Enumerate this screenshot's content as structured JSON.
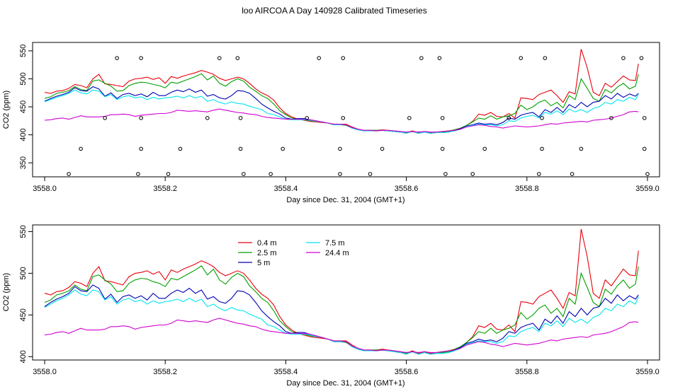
{
  "title": "loo AIRCOA A  Day 140928  Calibrated Timeseries",
  "colors": {
    "0.4 m": "#e8000b",
    "2.5 m": "#00a000",
    "5 m": "#0000b4",
    "7.5 m": "#00e5ee",
    "24.4 m": "#d000d0"
  },
  "panels": [
    {
      "xlabel": "Day since Dec. 31, 2004 (GMT+1)",
      "ylabel": "CO2 (ppm)",
      "xlim": [
        3557.98,
        3559.02
      ],
      "ylim": [
        325,
        565
      ],
      "yticks": [
        350,
        400,
        450,
        500,
        550
      ],
      "xticks": [
        3558.0,
        3558.2,
        3558.4,
        3558.6,
        3558.8,
        3559.0
      ],
      "xtick_labels": [
        "3558.0",
        "3558.2",
        "3558.4",
        "3558.6",
        "3558.8",
        "3559.0"
      ],
      "show_markers": true
    },
    {
      "xlabel": "Day since Dec. 31, 2004 (GMT+1)",
      "ylabel": "CO2 (ppm)",
      "xlim": [
        3557.98,
        3559.02
      ],
      "ylim": [
        396,
        558
      ],
      "yticks": [
        400,
        450,
        500,
        550
      ],
      "xticks": [
        3558.0,
        3558.2,
        3558.4,
        3558.6,
        3558.8,
        3559.0
      ],
      "xtick_labels": [
        "3558.0",
        "3558.2",
        "3558.4",
        "3558.6",
        "3558.8",
        "3559.0"
      ],
      "show_markers": false,
      "legend": {
        "placement": "top-left",
        "entries": [
          "0.4 m",
          "2.5 m",
          "5 m",
          "7.5 m",
          "24.4 m"
        ]
      }
    }
  ],
  "chart_data": {
    "type": "line",
    "x": [
      3558.0,
      3558.01,
      3558.02,
      3558.03,
      3558.04,
      3558.05,
      3558.06,
      3558.07,
      3558.08,
      3558.09,
      3558.1,
      3558.11,
      3558.12,
      3558.13,
      3558.14,
      3558.15,
      3558.16,
      3558.17,
      3558.18,
      3558.19,
      3558.2,
      3558.21,
      3558.22,
      3558.23,
      3558.24,
      3558.25,
      3558.26,
      3558.27,
      3558.28,
      3558.29,
      3558.3,
      3558.31,
      3558.32,
      3558.33,
      3558.34,
      3558.35,
      3558.36,
      3558.37,
      3558.38,
      3558.39,
      3558.4,
      3558.41,
      3558.42,
      3558.43,
      3558.44,
      3558.45,
      3558.46,
      3558.47,
      3558.48,
      3558.49,
      3558.5,
      3558.51,
      3558.52,
      3558.53,
      3558.54,
      3558.55,
      3558.56,
      3558.57,
      3558.58,
      3558.59,
      3558.6,
      3558.61,
      3558.62,
      3558.63,
      3558.64,
      3558.65,
      3558.66,
      3558.67,
      3558.68,
      3558.69,
      3558.7,
      3558.71,
      3558.72,
      3558.73,
      3558.74,
      3558.75,
      3558.76,
      3558.77,
      3558.78,
      3558.79,
      3558.8,
      3558.81,
      3558.82,
      3558.83,
      3558.84,
      3558.85,
      3558.86,
      3558.87,
      3558.88,
      3558.89,
      3558.9,
      3558.91,
      3558.92,
      3558.93,
      3558.94,
      3558.95,
      3558.96,
      3558.97,
      3558.98,
      3558.985
    ],
    "series": [
      {
        "name": "0.4 m",
        "values": [
          476,
          474,
          478,
          479,
          483,
          490,
          488,
          484,
          500,
          508,
          491,
          490,
          488,
          486,
          496,
          500,
          501,
          503,
          499,
          502,
          492,
          504,
          501,
          505,
          508,
          511,
          515,
          512,
          508,
          501,
          497,
          500,
          503,
          500,
          492,
          482,
          475,
          470,
          462,
          448,
          438,
          432,
          428,
          426,
          424,
          423,
          422,
          421,
          419,
          419,
          419,
          414,
          410,
          408,
          408,
          408,
          409,
          408,
          407,
          406,
          404,
          407,
          404,
          406,
          404,
          405,
          406,
          407,
          409,
          412,
          417,
          424,
          437,
          435,
          440,
          433,
          432,
          438,
          430,
          466,
          465,
          463,
          472,
          476,
          480,
          470,
          458,
          477,
          473,
          553,
          520,
          476,
          470,
          492,
          485,
          495,
          505,
          498,
          497,
          527
        ]
      },
      {
        "name": "2.5 m",
        "values": [
          465,
          468,
          474,
          476,
          479,
          486,
          481,
          479,
          496,
          498,
          492,
          487,
          478,
          479,
          488,
          492,
          494,
          493,
          490,
          488,
          484,
          494,
          492,
          496,
          500,
          504,
          509,
          498,
          505,
          492,
          487,
          495,
          500,
          496,
          485,
          478,
          470,
          465,
          455,
          443,
          436,
          430,
          428,
          427,
          425,
          424,
          423,
          421,
          418,
          418,
          417,
          412,
          409,
          408,
          408,
          408,
          408,
          407,
          406,
          405,
          404,
          406,
          403,
          405,
          403,
          404,
          405,
          406,
          409,
          412,
          417,
          423,
          430,
          428,
          434,
          428,
          432,
          434,
          438,
          453,
          445,
          450,
          458,
          462,
          452,
          458,
          448,
          470,
          463,
          500,
          483,
          465,
          460,
          481,
          475,
          485,
          492,
          482,
          487,
          508
        ]
      },
      {
        "name": "5 m",
        "values": [
          460,
          465,
          469,
          472,
          476,
          484,
          479,
          478,
          486,
          482,
          469,
          475,
          465,
          472,
          474,
          470,
          473,
          468,
          476,
          470,
          470,
          476,
          480,
          477,
          482,
          476,
          480,
          469,
          472,
          466,
          464,
          470,
          479,
          478,
          474,
          465,
          455,
          448,
          442,
          437,
          430,
          428,
          429,
          429,
          427,
          425,
          423,
          421,
          418,
          418,
          418,
          412,
          409,
          407,
          408,
          407,
          408,
          407,
          406,
          405,
          403,
          406,
          403,
          405,
          403,
          404,
          404,
          405,
          408,
          411,
          416,
          418,
          421,
          419,
          420,
          418,
          422,
          430,
          428,
          435,
          438,
          440,
          432,
          445,
          440,
          449,
          440,
          454,
          448,
          458,
          450,
          458,
          460,
          470,
          464,
          474,
          467,
          473,
          469,
          474
        ]
      },
      {
        "name": "7.5 m",
        "values": [
          459,
          463,
          467,
          470,
          474,
          480,
          475,
          473,
          480,
          478,
          468,
          472,
          463,
          468,
          470,
          466,
          468,
          463,
          467,
          464,
          466,
          467,
          469,
          466,
          470,
          466,
          469,
          460,
          463,
          458,
          455,
          459,
          456,
          455,
          451,
          448,
          445,
          438,
          436,
          432,
          428,
          427,
          427,
          427,
          426,
          424,
          423,
          421,
          418,
          418,
          418,
          412,
          409,
          407,
          407,
          407,
          408,
          407,
          406,
          405,
          403,
          406,
          403,
          405,
          403,
          404,
          404,
          405,
          407,
          410,
          415,
          417,
          419,
          418,
          418,
          416,
          418,
          425,
          424,
          430,
          433,
          435,
          430,
          440,
          437,
          443,
          436,
          446,
          441,
          445,
          440,
          447,
          450,
          458,
          455,
          463,
          460,
          467,
          463,
          472
        ]
      },
      {
        "name": "24.4 m",
        "values": [
          426,
          427,
          429,
          430,
          428,
          431,
          434,
          432,
          432,
          432,
          433,
          436,
          436,
          437,
          436,
          433,
          435,
          436,
          437,
          438,
          438,
          440,
          444,
          443,
          442,
          443,
          442,
          441,
          444,
          446,
          444,
          442,
          440,
          439,
          437,
          436,
          433,
          431,
          430,
          429,
          428,
          428,
          428,
          428,
          427,
          425,
          423,
          421,
          419,
          419,
          418,
          413,
          410,
          408,
          408,
          407,
          408,
          408,
          407,
          406,
          405,
          406,
          405,
          406,
          405,
          405,
          406,
          407,
          408,
          410,
          414,
          416,
          418,
          417,
          415,
          414,
          412,
          414,
          416,
          415,
          414,
          415,
          416,
          418,
          420,
          419,
          421,
          422,
          423,
          424,
          423,
          426,
          427,
          428,
          430,
          433,
          436,
          441,
          442,
          441
        ]
      }
    ],
    "markers": [
      {
        "x": 3558.04,
        "y": 330
      },
      {
        "x": 3558.06,
        "y": 375
      },
      {
        "x": 3558.1,
        "y": 430
      },
      {
        "x": 3558.12,
        "y": 537
      },
      {
        "x": 3558.155,
        "y": 330
      },
      {
        "x": 3558.16,
        "y": 375
      },
      {
        "x": 3558.16,
        "y": 430
      },
      {
        "x": 3558.16,
        "y": 537
      },
      {
        "x": 3558.205,
        "y": 330
      },
      {
        "x": 3558.225,
        "y": 375
      },
      {
        "x": 3558.27,
        "y": 430
      },
      {
        "x": 3558.29,
        "y": 537
      },
      {
        "x": 3558.32,
        "y": 537
      },
      {
        "x": 3558.325,
        "y": 430
      },
      {
        "x": 3558.325,
        "y": 375
      },
      {
        "x": 3558.33,
        "y": 330
      },
      {
        "x": 3558.375,
        "y": 330
      },
      {
        "x": 3558.395,
        "y": 375
      },
      {
        "x": 3558.435,
        "y": 430
      },
      {
        "x": 3558.455,
        "y": 537
      },
      {
        "x": 3558.49,
        "y": 330
      },
      {
        "x": 3558.49,
        "y": 375
      },
      {
        "x": 3558.495,
        "y": 430
      },
      {
        "x": 3558.495,
        "y": 537
      },
      {
        "x": 3558.54,
        "y": 330
      },
      {
        "x": 3558.56,
        "y": 375
      },
      {
        "x": 3558.605,
        "y": 430
      },
      {
        "x": 3558.625,
        "y": 537
      },
      {
        "x": 3558.655,
        "y": 537
      },
      {
        "x": 3558.66,
        "y": 430
      },
      {
        "x": 3558.66,
        "y": 375
      },
      {
        "x": 3558.665,
        "y": 330
      },
      {
        "x": 3558.71,
        "y": 330
      },
      {
        "x": 3558.73,
        "y": 375
      },
      {
        "x": 3558.77,
        "y": 430
      },
      {
        "x": 3558.79,
        "y": 537
      },
      {
        "x": 3558.82,
        "y": 330
      },
      {
        "x": 3558.825,
        "y": 375
      },
      {
        "x": 3558.825,
        "y": 430
      },
      {
        "x": 3558.83,
        "y": 537
      },
      {
        "x": 3558.875,
        "y": 330
      },
      {
        "x": 3558.89,
        "y": 375
      },
      {
        "x": 3558.94,
        "y": 430
      },
      {
        "x": 3558.96,
        "y": 537
      },
      {
        "x": 3558.99,
        "y": 537
      },
      {
        "x": 3558.995,
        "y": 430
      },
      {
        "x": 3558.995,
        "y": 375
      },
      {
        "x": 3559.0,
        "y": 330
      }
    ]
  }
}
